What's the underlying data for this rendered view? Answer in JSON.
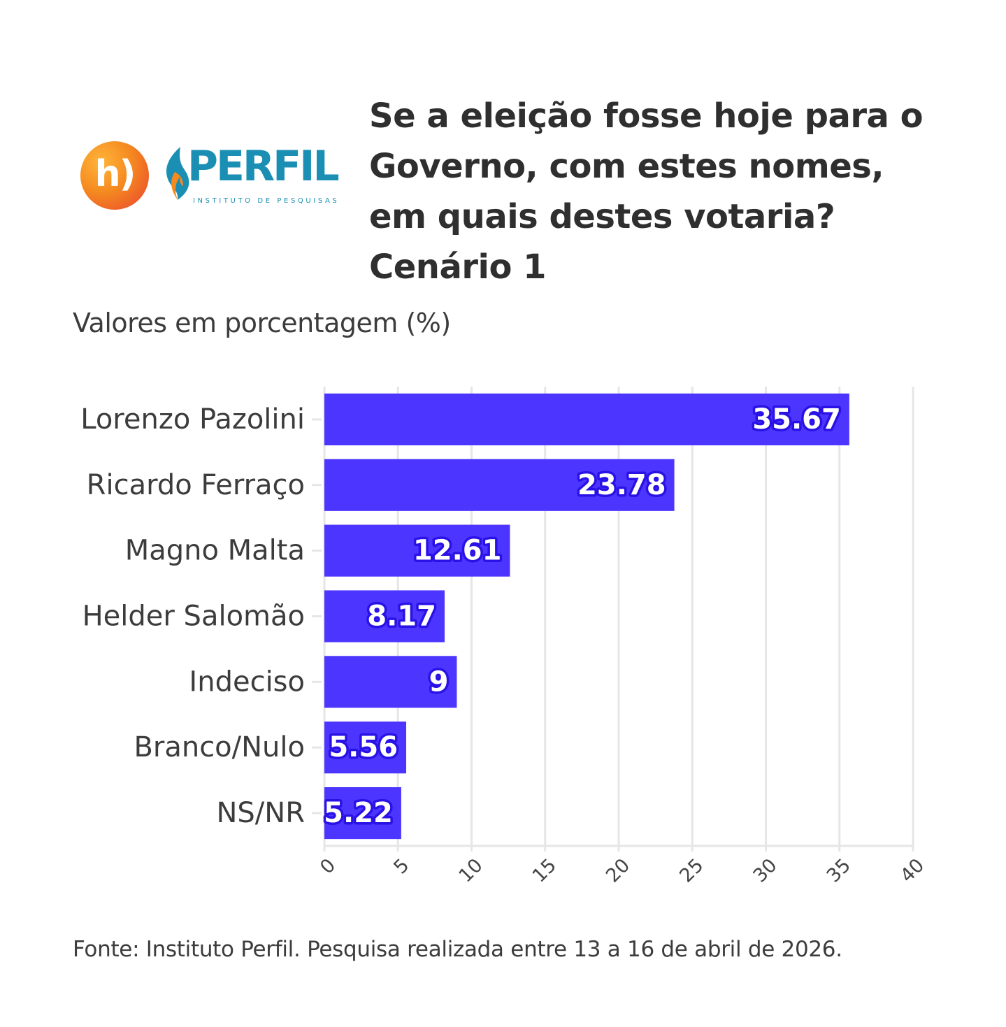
{
  "header": {
    "brand_initial": "h)",
    "brand_name": "PERFIL",
    "brand_tagline": "INSTITUTO DE PESQUISAS",
    "title_lines": [
      "Se a eleição fosse hoje para o",
      "Governo, com estes nomes,",
      "em quais destes votaria?",
      "Cenário 1"
    ],
    "subtitle": "Valores em porcentagem (%)"
  },
  "footer": {
    "source": "Fonte: Instituto Perfil. Pesquisa realizada entre 13 a 16 de abril de 2026."
  },
  "colors": {
    "bar": "#4b35ff",
    "label_text": "#ffffff",
    "label_outline": "#2a12e6",
    "grid": "#e6e6e6",
    "axis_text": "#444444",
    "brand_teal": "#1b8fb3",
    "brand_orange": "#f58a20"
  },
  "chart_data": {
    "type": "bar",
    "orientation": "horizontal",
    "categories": [
      "Lorenzo Pazolini",
      "Ricardo Ferraço",
      "Magno Malta",
      "Helder Salomão",
      "Indeciso",
      "Branco/Nulo",
      "NS/NR"
    ],
    "values": [
      35.67,
      23.78,
      12.61,
      8.17,
      9,
      5.56,
      5.22
    ],
    "value_labels": [
      "35.67",
      "23.78",
      "12.61",
      "8.17",
      "9",
      "5.56",
      "5.22"
    ],
    "xlim": [
      0,
      40
    ],
    "xticks": [
      0,
      5,
      10,
      15,
      20,
      25,
      30,
      35,
      40
    ],
    "grid": true,
    "legend": "none"
  }
}
